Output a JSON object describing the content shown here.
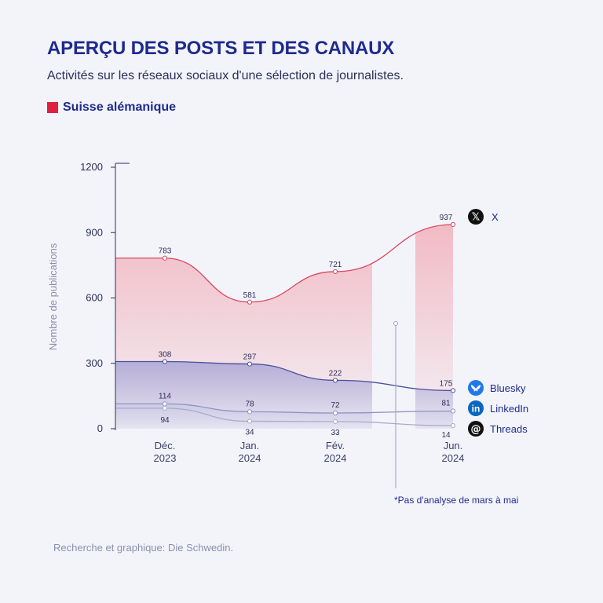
{
  "title": "APERÇU DES POSTS ET DES CANAUX",
  "subtitle": "Activités sur les réseaux sociaux d'une sélection de journalistes.",
  "legend": {
    "label": "Suisse alémanique",
    "color": "#e0203f"
  },
  "source": "Recherche et graphique: Die Schwedin.",
  "chart_data": {
    "type": "line",
    "ylabel": "Nombre de publications",
    "ylim": [
      0,
      1200
    ],
    "yticks": [
      0,
      300,
      600,
      900,
      1200
    ],
    "categories": [
      {
        "line1": "Déc.",
        "line2": "2023"
      },
      {
        "line1": "Jan.",
        "line2": "2024"
      },
      {
        "line1": "Fév.",
        "line2": "2024"
      },
      {
        "line1": "Jun.",
        "line2": "2024"
      }
    ],
    "series": [
      {
        "name": "X",
        "icon": "x-icon",
        "color": "#d9485f",
        "values": [
          783,
          581,
          721,
          937
        ]
      },
      {
        "name": "Bluesky",
        "icon": "bluesky-icon",
        "color": "#4a4f9e",
        "values": [
          308,
          297,
          222,
          175
        ]
      },
      {
        "name": "LinkedIn",
        "icon": "linkedin-icon",
        "color": "#8e92c4",
        "values": [
          114,
          78,
          72,
          81
        ]
      },
      {
        "name": "Threads",
        "icon": "threads-icon",
        "color": "#a9adc8",
        "values": [
          94,
          34,
          33,
          14
        ]
      }
    ],
    "note": "*Pas d'analyse de mars à mai"
  }
}
